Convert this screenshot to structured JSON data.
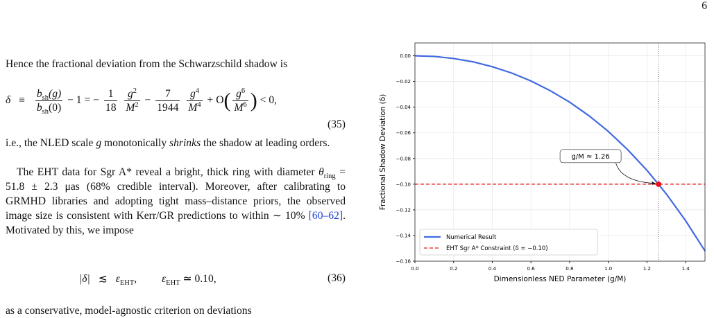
{
  "page_number": "6",
  "p1": "Hence the fractional deviation from the Schwarzschild shadow is",
  "eq35": {
    "delta": "δ",
    "equiv": "≡",
    "num1": "b",
    "num1_sub": "sh",
    "num1_arg": "(g)",
    "den1": "b",
    "den1_sub": "sh",
    "den1_arg": "(0)",
    "mid": "− 1 = −",
    "c1_num": "1",
    "c1_den": "18",
    "g1_num": "g",
    "g1_num_exp": "2",
    "g1_den": "M",
    "g1_den_exp": "2",
    "minus": "−",
    "c2_num": "7",
    "c2_den": "1944",
    "g2_num": "g",
    "g2_num_exp": "4",
    "g2_den": "M",
    "g2_den_exp": "4",
    "plus_o": "+ O",
    "open": "(",
    "g3_num": "g",
    "g3_num_exp": "6",
    "g3_den": "M",
    "g3_den_exp": "6",
    "close": ")",
    "tail": "< 0,",
    "number": "(35)"
  },
  "p2": {
    "a": "i.e., the NLED scale ",
    "g": "g",
    "b": " monotonically ",
    "em": "shrinks",
    "c": " the shadow at leading orders."
  },
  "p3": {
    "a": "The EHT data for Sgr A* reveal a bright, thick ring with diameter ",
    "theta": "θ",
    "theta_sub": "ring",
    "b": " = 51.8 ± 2.3 μas (68% credible interval). Moreover, after calibrating to GRMHD libraries and adopting tight mass–distance priors, the observed image size is consistent with Kerr/GR predictions to within ∼ 10% ",
    "cite": "[60–62]",
    "c": ". Motivated by this, we impose"
  },
  "eq36": {
    "abs": "|δ|",
    "rel": "≲",
    "eps1": "ε",
    "eps1_sub": "EHT",
    "comma": ",",
    "eps2": "ε",
    "eps2_sub": "EHT",
    "val": "≃ 0.10,",
    "number": "(36)"
  },
  "p4": "as a conservative, model-agnostic criterion on deviations",
  "chart_data": {
    "type": "line",
    "xlabel": "Dimensionless NED Parameter (g/M)",
    "ylabel": "Fractional Shadow Deviation (δ)",
    "x": [
      0,
      0.1,
      0.2,
      0.3,
      0.4,
      0.5,
      0.6,
      0.7,
      0.8,
      0.9,
      1.0,
      1.1,
      1.2,
      1.3,
      1.4,
      1.5
    ],
    "series": [
      {
        "name": "Numerical Result",
        "color": "#4169e1",
        "values": [
          0,
          -0.0005,
          -0.0021,
          -0.0047,
          -0.0085,
          -0.0134,
          -0.0196,
          -0.0272,
          -0.0361,
          -0.0467,
          -0.0589,
          -0.0731,
          -0.0892,
          -0.1076,
          -0.1285,
          -0.152
        ]
      }
    ],
    "constraint": {
      "name": "EHT Sgr A* Constraint (δ = −0.10)",
      "value": -0.1,
      "color": "#e8141c"
    },
    "vline": 1.26,
    "marker": {
      "x": 1.26,
      "y": -0.1,
      "color": "#e8141c"
    },
    "annotation": "g/M ≈ 1.26",
    "xlim": [
      0,
      1.5
    ],
    "ylim": [
      -0.16,
      0.01
    ],
    "xticks": [
      {
        "value": 0,
        "label": "0.0"
      },
      {
        "value": 0.2,
        "label": "0.2"
      },
      {
        "value": 0.4,
        "label": "0.4"
      },
      {
        "value": 0.6,
        "label": "0.6"
      },
      {
        "value": 0.8,
        "label": "0.8"
      },
      {
        "value": 1.0,
        "label": "1.0"
      },
      {
        "value": 1.2,
        "label": "1.2"
      },
      {
        "value": 1.4,
        "label": "1.4"
      }
    ],
    "yticks": [
      {
        "value": 0,
        "label": "0.00"
      },
      {
        "value": -0.02,
        "label": "−0.02"
      },
      {
        "value": -0.04,
        "label": "−0.04"
      },
      {
        "value": -0.06,
        "label": "−0.06"
      },
      {
        "value": -0.08,
        "label": "−0.08"
      },
      {
        "value": -0.1,
        "label": "−0.10"
      },
      {
        "value": -0.12,
        "label": "−0.12"
      },
      {
        "value": -0.14,
        "label": "−0.14"
      },
      {
        "value": -0.16,
        "label": "−0.16"
      }
    ],
    "grid": true,
    "legend": "lower left"
  }
}
